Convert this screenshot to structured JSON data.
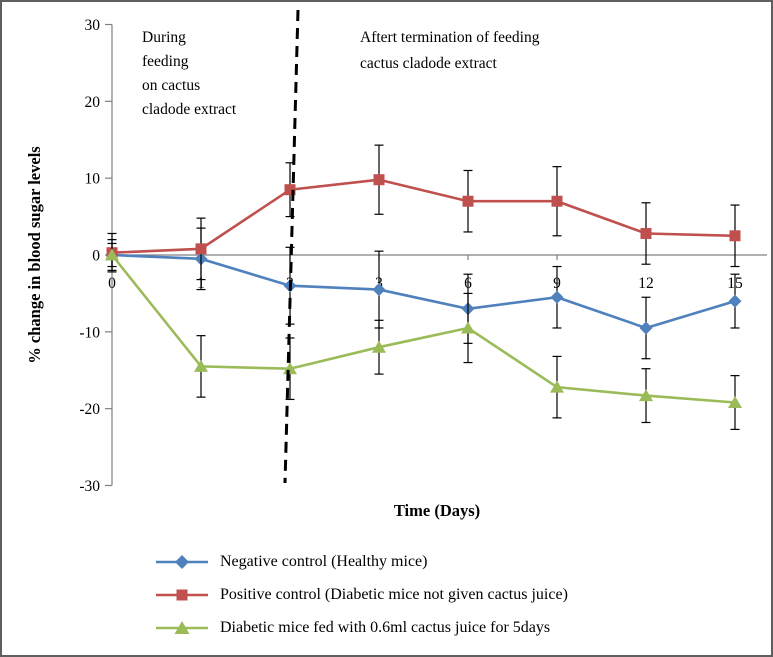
{
  "chart_data": {
    "type": "line",
    "x_categories": [
      "0",
      "1",
      "2",
      "3",
      "6",
      "9",
      "12",
      "15"
    ],
    "x_axis_label": "Time (Days)",
    "y_axis_label": "% change in blood sugar levels",
    "y_ticks": [
      -30,
      -20,
      -10,
      0,
      10,
      20,
      30
    ],
    "ylim": [
      -30,
      30
    ],
    "grid": "off",
    "legend_position": "bottom",
    "error_bars": true,
    "series": [
      {
        "name": "Negative control (Healthy mice)",
        "color": "#4F81BD",
        "marker": "diamond",
        "values": [
          0,
          -0.5,
          -4,
          -4.5,
          -7,
          -5.5,
          -9.5,
          -6
        ],
        "error": [
          1.5,
          4,
          5,
          5,
          4.5,
          4,
          4,
          3.5
        ]
      },
      {
        "name": "Positive control (Diabetic mice not given cactus juice)",
        "color": "#C0504D",
        "marker": "square",
        "values": [
          0.3,
          0.8,
          8.5,
          9.8,
          7,
          7,
          2.8,
          2.5
        ],
        "error": [
          2.5,
          4,
          3.5,
          4.5,
          4,
          4.5,
          4,
          4
        ]
      },
      {
        "name": "Diabetic mice fed with 0.6ml cactus juice for 5days",
        "color": "#9BBB59",
        "marker": "triangle",
        "values": [
          0,
          -14.5,
          -14.8,
          -12,
          -9.5,
          -17.2,
          -18.3,
          -19.2
        ],
        "error": [
          2,
          4,
          4,
          3.5,
          4.5,
          4,
          3.5,
          3.5
        ]
      }
    ],
    "annotations": [
      {
        "id": "during-feeding",
        "lines": [
          "During",
          "feeding",
          "on cactus",
          "cladode extract"
        ]
      },
      {
        "id": "after-termination",
        "lines": [
          "Aftert termination of feeding",
          "cactus  cladode extract"
        ]
      }
    ],
    "divider": {
      "style": "dashed",
      "color": "#000000"
    }
  }
}
